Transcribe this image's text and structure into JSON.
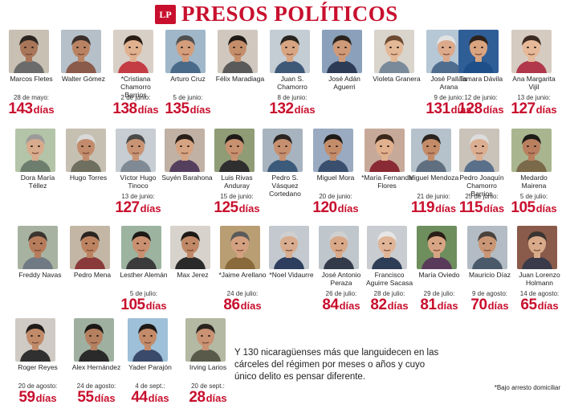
{
  "header": {
    "logo_text": "LP",
    "title": "PRESOS POLÍTICOS"
  },
  "days_unit": "días",
  "prisoners": [
    {
      "name": "Marcos Fletes",
      "date": "28 de mayo:",
      "days": "143",
      "skin": "#a9765a",
      "hair": "#2b2521",
      "shirt": "#6b6b6b",
      "bg": "#c9c0b4"
    },
    {
      "name": "Walter Gómez",
      "date": "",
      "days": "",
      "skin": "#b98363",
      "hair": "#3a2f2a",
      "shirt": "#8a5a4a",
      "bg": "#b5c0c9"
    },
    {
      "name": "*Cristiana Chamorro Barrios",
      "date": "2 de junio:",
      "days": "138",
      "skin": "#e0b18f",
      "hair": "#2a1d16",
      "shirt": "#c43c44",
      "bg": "#d8cfc7"
    },
    {
      "name": "Arturo Cruz",
      "date": "5 de junio:",
      "days": "135",
      "skin": "#d49d7b",
      "hair": "#505050",
      "shirt": "#4a6a8a",
      "bg": "#9fb7c9"
    },
    {
      "name": "Félix Maradiaga",
      "date": "",
      "days": "",
      "skin": "#c58e6a",
      "hair": "#1f1a17",
      "shirt": "#5a5a5a",
      "bg": "#d0c8be"
    },
    {
      "name": "Juan S. Chamorro",
      "date": "8 de junio:",
      "days": "132",
      "skin": "#d7a582",
      "hair": "#2a2420",
      "shirt": "#3e5878",
      "bg": "#c4ccd4"
    },
    {
      "name": "José Adán Aguerri",
      "date": "",
      "days": "",
      "skin": "#cf9a78",
      "hair": "#2b231e",
      "shirt": "#2e3b57",
      "bg": "#8aa0bb"
    },
    {
      "name": "Violeta Granera",
      "date": "",
      "days": "",
      "skin": "#e3b896",
      "hair": "#6d4a32",
      "shirt": "#7a8a9a",
      "bg": "#d9d4cc"
    },
    {
      "name": "José Pallais Arana",
      "date": "9 de junio:",
      "days": "131",
      "skin": "#dcaa8b",
      "hair": "#e2e2e2",
      "shirt": "#4f6d8f",
      "bg": "#b6c7d6"
    },
    {
      "name": "Tamara Dávila",
      "date": "12 de junio:",
      "days": "128",
      "skin": "#d9a480",
      "hair": "#2c211b",
      "shirt": "#1f4f89",
      "bg": "#2f5e97"
    },
    {
      "name": "Ana Margarita Vijil",
      "date": "13 de junio:",
      "days": "127",
      "skin": "#e6b998",
      "hair": "#3a2a22",
      "shirt": "#b0384a",
      "bg": "#d6cbc1"
    },
    {
      "name": "Dora María Téllez",
      "date": "",
      "days": "",
      "skin": "#d8ab8c",
      "hair": "#9b9b9b",
      "shirt": "#6e7e6e",
      "bg": "#b4c4a8"
    },
    {
      "name": "Hugo Torres",
      "date": "",
      "days": "",
      "skin": "#c28c6c",
      "hair": "#d9d9d9",
      "shirt": "#6f6f5f",
      "bg": "#c6c0b2"
    },
    {
      "name": "Víctor Hugo Tinoco",
      "date": "13 de junio:",
      "days": "127",
      "skin": "#c99474",
      "hair": "#4a4a4a",
      "shirt": "#7f8a95",
      "bg": "#c7cdd2"
    },
    {
      "name": "Suyén Barahona",
      "date": "",
      "days": "",
      "skin": "#d6a482",
      "hair": "#2a1f19",
      "shirt": "#553f5e",
      "bg": "#c0b1a4"
    },
    {
      "name": "Luis Rivas Anduray",
      "date": "15 de junio:",
      "days": "125",
      "skin": "#c8916f",
      "hair": "#1e1a18",
      "shirt": "#2f2f2f",
      "bg": "#8f9c76"
    },
    {
      "name": "Pedro S. Vásquez Cortedano",
      "date": "",
      "days": "",
      "skin": "#c69070",
      "hair": "#2a2522",
      "shirt": "#3c5a7a",
      "bg": "#a7b4bf"
    },
    {
      "name": "Miguel Mora",
      "date": "20 de junio:",
      "days": "120",
      "skin": "#c48d6a",
      "hair": "#1f1b18",
      "shirt": "#3a4f6e",
      "bg": "#9aaac0"
    },
    {
      "name": "*María Fernanda Flores",
      "date": "",
      "days": "",
      "skin": "#e1b18e",
      "hair": "#3b261b",
      "shirt": "#8a2a35",
      "bg": "#c7a99a"
    },
    {
      "name": "Miguel Mendoza",
      "date": "21 de junio:",
      "days": "119",
      "skin": "#c38b68",
      "hair": "#2a231f",
      "shirt": "#5f6f7f",
      "bg": "#b5c2cc"
    },
    {
      "name": "Pedro Joaquín Chamorro Barrios",
      "date": "25 de junio:",
      "days": "115",
      "skin": "#dcae91",
      "hair": "#dcdcdc",
      "shirt": "#5a6f8a",
      "bg": "#c9c3ba"
    },
    {
      "name": "Medardo Mairena",
      "date": "5 de julio:",
      "days": "105",
      "skin": "#b97f5e",
      "hair": "#1e1b19",
      "shirt": "#7a6a4a",
      "bg": "#a9b58f"
    },
    {
      "name": "Freddy Navas",
      "date": "",
      "days": "",
      "skin": "#b77c5b",
      "hair": "#3a3430",
      "shirt": "#707a84",
      "bg": "#a8b2a0"
    },
    {
      "name": "Pedro Mena",
      "date": "",
      "days": "",
      "skin": "#bd8361",
      "hair": "#2b2522",
      "shirt": "#8a3a3a",
      "bg": "#c3b6a4"
    },
    {
      "name": "Lesther Alemán",
      "date": "5 de julio:",
      "days": "105",
      "skin": "#c99070",
      "hair": "#1c1815",
      "shirt": "#3b3b3b",
      "bg": "#9cb3a0"
    },
    {
      "name": "Max Jerez",
      "date": "",
      "days": "",
      "skin": "#c08866",
      "hair": "#1d1916",
      "shirt": "#2a2a2a",
      "bg": "#d7d3cc"
    },
    {
      "name": "*Jaime Arellano",
      "date": "24 de julio:",
      "days": "86",
      "skin": "#d3a080",
      "hair": "#5a5a5a",
      "shirt": "#8a6a3a",
      "bg": "#b99e74"
    },
    {
      "name": "*Noel Vidaurre",
      "date": "",
      "days": "",
      "skin": "#d8ac8e",
      "hair": "#cfcfcf",
      "shirt": "#2d3e5e",
      "bg": "#c3c9cf"
    },
    {
      "name": "José Antonio Peraza",
      "date": "26 de julio:",
      "days": "84",
      "skin": "#d9a887",
      "hair": "#d0d0d0",
      "shirt": "#333a4a",
      "bg": "#bfc6cc"
    },
    {
      "name": "Francisco Aguirre Sacasa",
      "date": "28 de julio:",
      "days": "82",
      "skin": "#e0b597",
      "hair": "#e6e6e6",
      "shirt": "#2d3d55",
      "bg": "#c9ccd0"
    },
    {
      "name": "María Oviedo",
      "date": "29 de julio:",
      "days": "81",
      "skin": "#d7a583",
      "hair": "#2a1e18",
      "shirt": "#5a3a5a",
      "bg": "#6e8e5e"
    },
    {
      "name": "Mauricio Díaz",
      "date": "9 de agosto:",
      "days": "70",
      "skin": "#c99676",
      "hair": "#4a423c",
      "shirt": "#4a5a6a",
      "bg": "#b3bcc4"
    },
    {
      "name": "Juan Lorenzo Holmann",
      "date": "14 de agosto:",
      "days": "65",
      "skin": "#d9aa8a",
      "hair": "#3a3531",
      "shirt": "#3a3a4a",
      "bg": "#8a5a4a"
    },
    {
      "name": "Roger Reyes",
      "date": "20 de agosto:",
      "days": "59",
      "skin": "#c18a69",
      "hair": "#1f1b18",
      "shirt": "#303030",
      "bg": "#cfcac3"
    },
    {
      "name": "Alex Hernández",
      "date": "24 de agosto:",
      "days": "55",
      "skin": "#b58060",
      "hair": "#1b1815",
      "shirt": "#2a2a2a",
      "bg": "#9fb0a0"
    },
    {
      "name": "Yader Parajón",
      "date": "4 de sept.:",
      "days": "44",
      "skin": "#c38b69",
      "hair": "#1d1916",
      "shirt": "#3a4a6a",
      "bg": "#9ec0d8"
    },
    {
      "name": "Irving Larios",
      "date": "20 de sept.:",
      "days": "28",
      "skin": "#c99272",
      "hair": "#2a2420",
      "shirt": "#5a5a4a",
      "bg": "#b3b9a2"
    }
  ],
  "summary_text": "Y 130 nicaragüenses más que languidecen en las cárceles del régimen por meses o años y cuyo único delito es pensar diferente.",
  "footnote": "*Bajo arresto domiciliar"
}
